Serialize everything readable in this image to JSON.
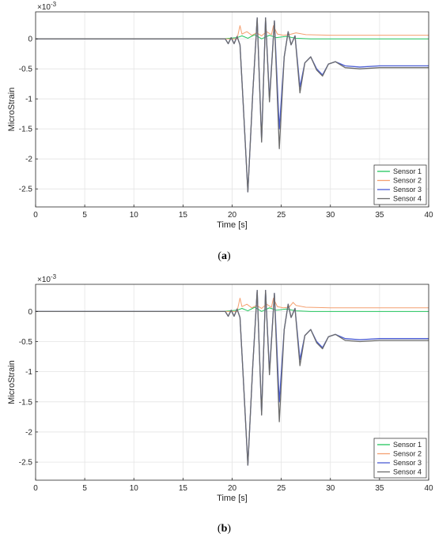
{
  "chart_data": [
    {
      "type": "line",
      "caption_letter": "a",
      "multiplier": "×10",
      "multiplier_exp": "-3",
      "xlabel": "Time [s]",
      "ylabel": "MicroStrain",
      "xlim": [
        0,
        40
      ],
      "ylim": [
        -2.8,
        0.45
      ],
      "xticks": [
        0,
        5,
        10,
        15,
        20,
        25,
        30,
        35,
        40
      ],
      "yticks": [
        0,
        -0.5,
        -1,
        -1.5,
        -2,
        -2.5
      ],
      "ytick_labels": [
        "0",
        "-0.5",
        "-1",
        "-1.5",
        "-2",
        "-2.5"
      ],
      "grid": true,
      "legend_position": "bottom-right",
      "series": [
        {
          "name": "Sensor 1",
          "color": "#22c55e",
          "x": [
            0,
            19,
            20.5,
            21,
            21.6,
            22.3,
            23,
            23.8,
            24.5,
            25.5,
            26.5,
            28,
            40
          ],
          "y": [
            0,
            0,
            0.02,
            0.05,
            0.01,
            0.07,
            0.0,
            0.06,
            0.02,
            0.04,
            0.01,
            0.0,
            0.0
          ]
        },
        {
          "name": "Sensor 2",
          "color": "#f4a070",
          "x": [
            0,
            20.5,
            20.8,
            21.0,
            21.5,
            22.0,
            22.5,
            23.0,
            23.5,
            24.0,
            24.2,
            24.6,
            25.2,
            25.8,
            26.5,
            27.5,
            30,
            40
          ],
          "y": [
            0,
            0,
            0.22,
            0.08,
            0.12,
            0.06,
            0.1,
            0.05,
            0.12,
            0.07,
            0.22,
            0.08,
            0.06,
            0.07,
            0.1,
            0.07,
            0.06,
            0.06
          ]
        },
        {
          "name": "Sensor 3",
          "color": "#4a5cd4",
          "x": [
            0,
            19.3,
            19.6,
            19.9,
            20.2,
            20.5,
            20.8,
            21.1,
            21.6,
            22.1,
            22.55,
            23.0,
            23.4,
            23.8,
            24.3,
            24.8,
            25.3,
            25.7,
            26.0,
            26.4,
            26.9,
            27.4,
            28.0,
            28.6,
            29.2,
            29.8,
            30.5,
            31.5,
            33,
            35,
            40
          ],
          "y": [
            0,
            0,
            -0.08,
            0.02,
            -0.08,
            0.04,
            -0.1,
            -1.0,
            -2.55,
            -0.9,
            0.35,
            -1.7,
            0.35,
            -1.0,
            0.3,
            -1.5,
            -0.3,
            0.12,
            -0.1,
            0.05,
            -0.8,
            -0.4,
            -0.3,
            -0.5,
            -0.6,
            -0.42,
            -0.38,
            -0.45,
            -0.47,
            -0.45,
            -0.45
          ]
        },
        {
          "name": "Sensor 4",
          "color": "#6b6b6b",
          "x": [
            0,
            19.3,
            19.6,
            19.9,
            20.2,
            20.5,
            20.8,
            21.1,
            21.6,
            22.1,
            22.55,
            23.0,
            23.4,
            23.8,
            24.3,
            24.8,
            25.3,
            25.7,
            26.0,
            26.4,
            26.9,
            27.4,
            28.0,
            28.6,
            29.2,
            29.8,
            30.5,
            31.5,
            33,
            35,
            40
          ],
          "y": [
            0,
            0,
            -0.08,
            0.02,
            -0.08,
            0.04,
            -0.1,
            -1.0,
            -2.55,
            -0.9,
            0.35,
            -1.72,
            0.35,
            -1.05,
            0.3,
            -1.83,
            -0.3,
            0.12,
            -0.1,
            0.05,
            -0.9,
            -0.4,
            -0.3,
            -0.52,
            -0.62,
            -0.42,
            -0.38,
            -0.48,
            -0.5,
            -0.48,
            -0.48
          ]
        }
      ]
    },
    {
      "type": "line",
      "caption_letter": "b",
      "multiplier": "×10",
      "multiplier_exp": "-3",
      "xlabel": "Time [s]",
      "ylabel": "MicroStrain",
      "xlim": [
        0,
        40
      ],
      "ylim": [
        -2.8,
        0.45
      ],
      "xticks": [
        0,
        5,
        10,
        15,
        20,
        25,
        30,
        35,
        40
      ],
      "yticks": [
        0,
        -0.5,
        -1,
        -1.5,
        -2,
        -2.5
      ],
      "ytick_labels": [
        "0",
        "-0.5",
        "-1",
        "-1.5",
        "-2",
        "-2.5"
      ],
      "grid": true,
      "legend_position": "bottom-right",
      "series": [
        {
          "name": "Sensor 1",
          "color": "#22c55e",
          "x": [
            0,
            19,
            20.5,
            21,
            21.6,
            22.3,
            23,
            23.8,
            24.5,
            25.5,
            26.5,
            28,
            40
          ],
          "y": [
            0,
            0,
            0.02,
            0.05,
            0.01,
            0.07,
            0.0,
            0.06,
            0.02,
            0.04,
            0.01,
            0.0,
            0.0
          ]
        },
        {
          "name": "Sensor 2",
          "color": "#f4a070",
          "x": [
            0,
            20.5,
            20.8,
            21.0,
            21.5,
            22.0,
            22.5,
            23.0,
            23.5,
            24.0,
            24.2,
            24.6,
            25.2,
            25.8,
            26.2,
            26.5,
            27.5,
            30,
            40
          ],
          "y": [
            0,
            0,
            0.22,
            0.08,
            0.12,
            0.06,
            0.1,
            0.05,
            0.12,
            0.07,
            0.22,
            0.08,
            0.06,
            0.07,
            0.15,
            0.1,
            0.07,
            0.06,
            0.06
          ]
        },
        {
          "name": "Sensor 3",
          "color": "#4a5cd4",
          "x": [
            0,
            19.3,
            19.6,
            19.9,
            20.2,
            20.5,
            20.8,
            21.1,
            21.6,
            22.1,
            22.55,
            23.0,
            23.4,
            23.8,
            24.3,
            24.8,
            25.3,
            25.7,
            26.0,
            26.4,
            26.9,
            27.4,
            28.0,
            28.6,
            29.2,
            29.8,
            30.5,
            31.5,
            33,
            35,
            40
          ],
          "y": [
            0,
            0,
            -0.08,
            0.02,
            -0.08,
            0.04,
            -0.1,
            -1.0,
            -2.55,
            -0.9,
            0.35,
            -1.7,
            0.35,
            -1.0,
            0.3,
            -1.5,
            -0.3,
            0.12,
            -0.1,
            0.05,
            -0.8,
            -0.4,
            -0.3,
            -0.5,
            -0.6,
            -0.42,
            -0.38,
            -0.45,
            -0.47,
            -0.45,
            -0.45
          ]
        },
        {
          "name": "Sensor 4",
          "color": "#6b6b6b",
          "x": [
            0,
            19.3,
            19.6,
            19.9,
            20.2,
            20.5,
            20.8,
            21.1,
            21.6,
            22.1,
            22.55,
            23.0,
            23.4,
            23.8,
            24.3,
            24.8,
            25.3,
            25.7,
            26.0,
            26.4,
            26.9,
            27.4,
            28.0,
            28.6,
            29.2,
            29.8,
            30.5,
            31.5,
            33,
            35,
            40
          ],
          "y": [
            0,
            0,
            -0.08,
            0.02,
            -0.08,
            0.04,
            -0.1,
            -1.0,
            -2.55,
            -0.9,
            0.35,
            -1.72,
            0.35,
            -1.05,
            0.3,
            -1.83,
            -0.3,
            0.12,
            -0.1,
            0.05,
            -0.9,
            -0.4,
            -0.3,
            -0.52,
            -0.62,
            -0.42,
            -0.38,
            -0.48,
            -0.5,
            -0.48,
            -0.48
          ]
        }
      ]
    }
  ]
}
